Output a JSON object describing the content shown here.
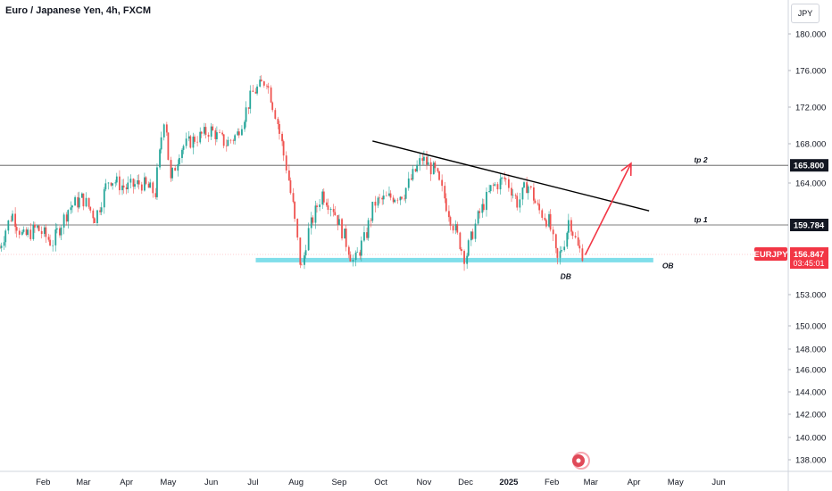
{
  "chart_data": {
    "type": "candlestick",
    "title": "Euro / Japanese Yen, 4h, FXCM",
    "currency": "JPY",
    "symbol": "EURJPY",
    "last_price": "156.847",
    "countdown": "03:45:01",
    "y_ticks": [
      "180.000",
      "176.000",
      "172.000",
      "168.000",
      "164.000",
      "159.784",
      "156.847",
      "153.000",
      "150.000",
      "148.000",
      "146.000",
      "144.000",
      "142.000",
      "140.000",
      "138.000"
    ],
    "y_tick_values": [
      180,
      176,
      172,
      168,
      164,
      159.784,
      156.847,
      153,
      150,
      148,
      146,
      144,
      142,
      140,
      138
    ],
    "x_ticks": [
      "Feb",
      "Mar",
      "Apr",
      "May",
      "Jun",
      "Jul",
      "Aug",
      "Sep",
      "Oct",
      "Nov",
      "Dec",
      "2025",
      "Feb",
      "Mar",
      "Apr",
      "May",
      "Jun"
    ],
    "x_tick_dates": [
      "2024-02-01",
      "2024-03-01",
      "2024-04-01",
      "2024-05-01",
      "2024-06-01",
      "2024-07-01",
      "2024-08-01",
      "2024-09-01",
      "2024-10-01",
      "2024-11-01",
      "2024-12-01",
      "2025-01-01",
      "2025-02-01",
      "2025-03-01",
      "2025-04-01",
      "2025-05-01",
      "2025-06-01"
    ],
    "price_path": [
      [
        "2024-01-01",
        157.5
      ],
      [
        "2024-01-10",
        161.0
      ],
      [
        "2024-01-18",
        158.5
      ],
      [
        "2024-01-28",
        159.5
      ],
      [
        "2024-02-08",
        158.0
      ],
      [
        "2024-02-20",
        161.5
      ],
      [
        "2024-03-01",
        162.5
      ],
      [
        "2024-03-10",
        160.5
      ],
      [
        "2024-03-20",
        164.5
      ],
      [
        "2024-04-01",
        163.5
      ],
      [
        "2024-04-12",
        164.0
      ],
      [
        "2024-04-22",
        163.0
      ],
      [
        "2024-04-29",
        171.5
      ],
      [
        "2024-05-03",
        164.0
      ],
      [
        "2024-05-10",
        167.5
      ],
      [
        "2024-05-20",
        168.5
      ],
      [
        "2024-06-01",
        169.5
      ],
      [
        "2024-06-12",
        168.0
      ],
      [
        "2024-06-20",
        169.0
      ],
      [
        "2024-07-01",
        173.5
      ],
      [
        "2024-07-11",
        175.0
      ],
      [
        "2024-07-18",
        171.0
      ],
      [
        "2024-07-25",
        166.0
      ],
      [
        "2024-07-31",
        161.0
      ],
      [
        "2024-08-05",
        155.0
      ],
      [
        "2024-08-10",
        159.0
      ],
      [
        "2024-08-20",
        163.0
      ],
      [
        "2024-08-28",
        161.5
      ],
      [
        "2024-09-04",
        159.0
      ],
      [
        "2024-09-12",
        156.0
      ],
      [
        "2024-09-20",
        158.5
      ],
      [
        "2024-09-27",
        162.0
      ],
      [
        "2024-10-07",
        162.5
      ],
      [
        "2024-10-18",
        163.0
      ],
      [
        "2024-10-31",
        166.5
      ],
      [
        "2024-11-10",
        165.0
      ],
      [
        "2024-11-22",
        160.0
      ],
      [
        "2024-12-01",
        156.5
      ],
      [
        "2024-12-10",
        160.5
      ],
      [
        "2024-12-20",
        163.5
      ],
      [
        "2024-12-30",
        164.5
      ],
      [
        "2025-01-08",
        162.0
      ],
      [
        "2025-01-15",
        164.0
      ],
      [
        "2025-01-22",
        161.5
      ],
      [
        "2025-01-31",
        160.0
      ],
      [
        "2025-02-05",
        156.0
      ],
      [
        "2025-02-10",
        158.0
      ],
      [
        "2025-02-14",
        160.5
      ],
      [
        "2025-02-20",
        157.5
      ],
      [
        "2025-02-24",
        156.85
      ]
    ],
    "horizontal_lines": [
      {
        "label": "tp 2",
        "price": 165.8,
        "price_label": "165.800"
      },
      {
        "label": "tp 1",
        "price": 159.784,
        "price_label": "159.784"
      }
    ],
    "zone": {
      "label": "OB",
      "price": 156.3,
      "from": "2024-07-03",
      "to": "2025-04-15"
    },
    "trendline": {
      "from": [
        "2024-09-25",
        168.3
      ],
      "to": [
        "2025-04-12",
        161.2
      ]
    },
    "arrow": {
      "from": [
        "2025-02-25",
        156.8
      ],
      "to": [
        "2025-03-30",
        166.0
      ]
    },
    "pattern_label": {
      "text": "DB",
      "date": "2025-02-11",
      "price": 155.2
    },
    "colors": {
      "up": "#26a69a",
      "down": "#ef5350",
      "zone": "#80deea",
      "arrow": "#f23645",
      "trendline": "#000000",
      "price_tag": "#f23645"
    }
  }
}
